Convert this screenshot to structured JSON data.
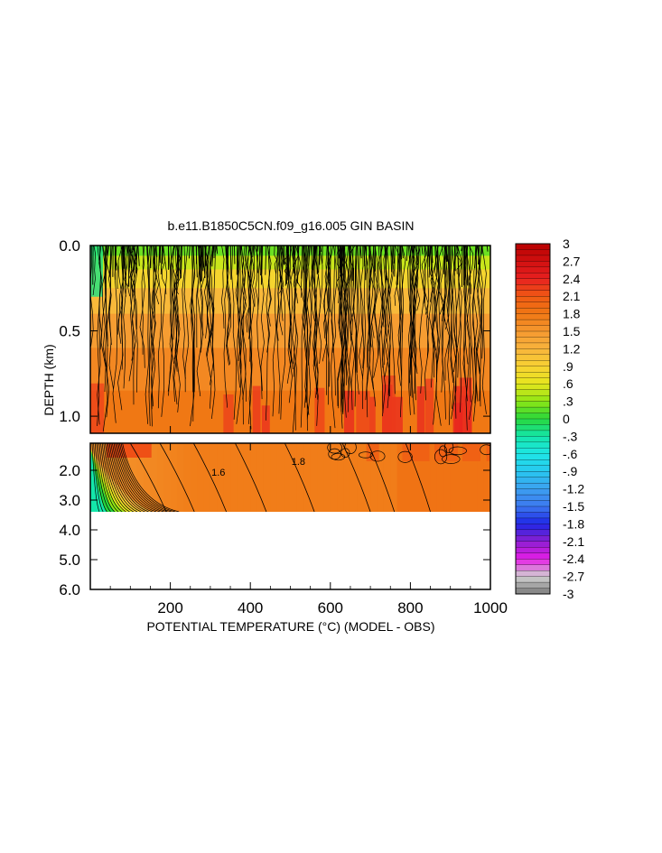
{
  "chart_data": {
    "type": "heatmap",
    "title": "b.e11.B1850C5CN.f09_g16.005 GIN BASIN",
    "xlabel": "POTENTIAL TEMPERATURE (°C) (MODEL - OBS)",
    "ylabel": "DEPTH (km)",
    "xlim": [
      0,
      1000
    ],
    "x_ticks": [
      "200",
      "400",
      "600",
      "800",
      "1000"
    ],
    "x_tick_values": [
      200,
      400,
      600,
      800,
      1000
    ],
    "y_upper_ticks": [
      "0.0",
      "0.5",
      "1.0"
    ],
    "y_upper_values": [
      0.0,
      0.5,
      1.0
    ],
    "y_upper_lim": [
      0.0,
      1.1
    ],
    "y_lower_ticks": [
      "2.0",
      "3.0",
      "4.0",
      "5.0",
      "6.0"
    ],
    "y_lower_values": [
      2.0,
      3.0,
      4.0,
      5.0,
      6.0
    ],
    "y_lower_lim": [
      1.1,
      6.0
    ],
    "data_bottom_depth": 3.4,
    "contour_labels": [
      {
        "text": "1.6",
        "x": 320,
        "y": 2.4
      },
      {
        "text": "1.8",
        "x": 520,
        "y": 2.1
      }
    ],
    "colorbar": {
      "labels": [
        "3",
        "2.7",
        "2.4",
        "2.1",
        "1.8",
        "1.5",
        "1.2",
        ".9",
        ".6",
        ".3",
        "0",
        "-.3",
        "-.6",
        "-.9",
        "-1.2",
        "-1.5",
        "-1.8",
        "-2.1",
        "-2.4",
        "-2.7",
        "-3"
      ],
      "values": [
        3,
        2.7,
        2.4,
        2.1,
        1.8,
        1.5,
        1.2,
        0.9,
        0.6,
        0.3,
        0,
        -0.3,
        -0.6,
        -0.9,
        -1.2,
        -1.5,
        -1.8,
        -2.1,
        -2.4,
        -2.7,
        -3
      ],
      "anchor_colors": [
        {
          "v": 3.0,
          "c": "#b80000"
        },
        {
          "v": 2.4,
          "c": "#e82020"
        },
        {
          "v": 2.1,
          "c": "#f05a14"
        },
        {
          "v": 1.8,
          "c": "#f07814"
        },
        {
          "v": 1.5,
          "c": "#f59830"
        },
        {
          "v": 1.2,
          "c": "#f8b43c"
        },
        {
          "v": 0.9,
          "c": "#f8d232"
        },
        {
          "v": 0.6,
          "c": "#e6e61e"
        },
        {
          "v": 0.3,
          "c": "#8ee614"
        },
        {
          "v": 0.0,
          "c": "#28d73c"
        },
        {
          "v": -0.3,
          "c": "#14e6aa"
        },
        {
          "v": -0.6,
          "c": "#1ee6e6"
        },
        {
          "v": -0.9,
          "c": "#28c8f0"
        },
        {
          "v": -1.2,
          "c": "#3ca0f0"
        },
        {
          "v": -1.5,
          "c": "#3c78f0"
        },
        {
          "v": -1.8,
          "c": "#1e28e6"
        },
        {
          "v": -2.1,
          "c": "#8c1ed2"
        },
        {
          "v": -2.4,
          "c": "#e61ee6"
        },
        {
          "v": -2.7,
          "c": "#d2d2d2"
        },
        {
          "v": -3.0,
          "c": "#7a7a7a"
        }
      ]
    }
  }
}
